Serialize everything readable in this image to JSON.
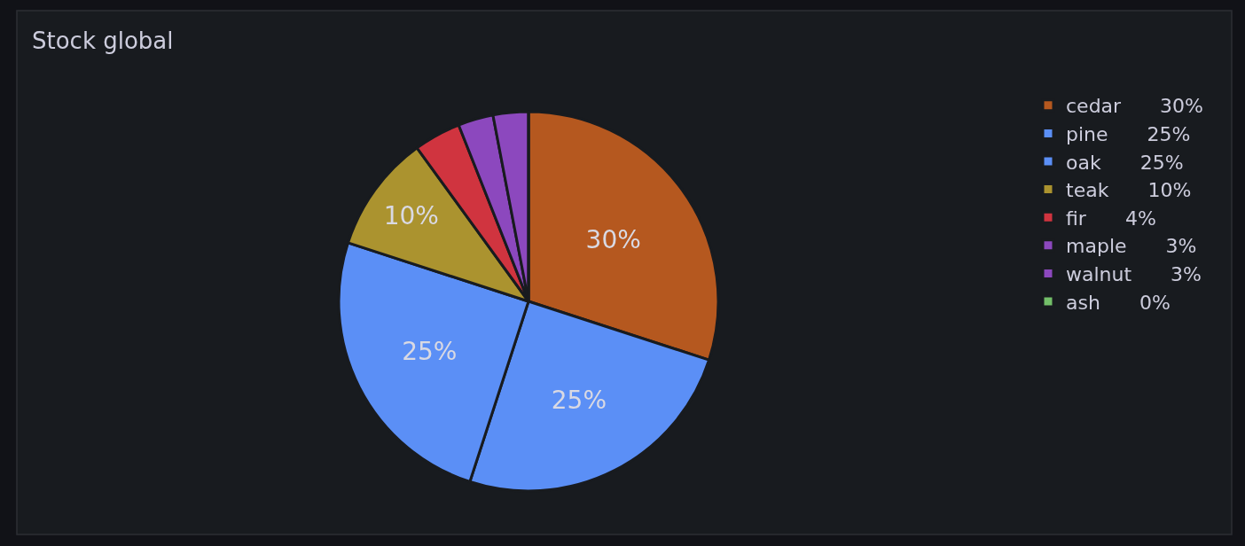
{
  "chart_data": {
    "type": "pie",
    "title": "Stock global",
    "categories": [
      "cedar",
      "pine",
      "oak",
      "teak",
      "fir",
      "maple",
      "walnut",
      "ash"
    ],
    "values": [
      30,
      25,
      25,
      10,
      4,
      3,
      3,
      0
    ],
    "colors": [
      "#b5581f",
      "#5b8ff6",
      "#5b8ff6",
      "#ab932f",
      "#d0343f",
      "#8c48be",
      "#8c48be",
      "#73bf69"
    ],
    "value_labels": [
      "30%",
      "25%",
      "25%",
      "10%",
      "4%",
      "3%",
      "3%",
      "0%"
    ],
    "legend": "right"
  }
}
